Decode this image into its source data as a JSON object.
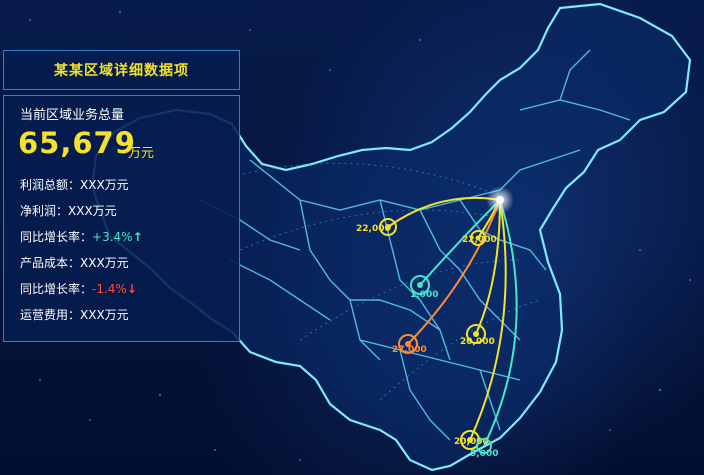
{
  "panel": {
    "title": "某某区域详细数据项",
    "total_label": "当前区域业务总量",
    "total_value": "65,679",
    "total_unit": "万元",
    "rows": [
      {
        "label": "利润总额：",
        "value": "XXX万元"
      },
      {
        "label": "净利润：",
        "value": "XXX万元"
      },
      {
        "label": "同比增长率：",
        "value": "+3.4%",
        "trend": "up"
      },
      {
        "label": "产品成本：",
        "value": "XXX万元"
      },
      {
        "label": "同比增长率：",
        "value": "-1.4%",
        "trend": "down"
      },
      {
        "label": "运营费用：",
        "value": "XXX万元"
      }
    ]
  },
  "map": {
    "nodes": [
      {
        "label": "22,000",
        "color": "#f3e12d"
      },
      {
        "label": "22,000",
        "color": "#f3e12d"
      },
      {
        "label": "1,000",
        "color": "#45e8c8"
      },
      {
        "label": "27,000",
        "color": "#ff8a3c"
      },
      {
        "label": "20,000",
        "color": "#f3e12d"
      },
      {
        "label": "20,000",
        "color": "#f3e12d"
      },
      {
        "label": "5,000",
        "color": "#45e8c8"
      }
    ]
  },
  "colors": {
    "accent_yellow": "#f3e12d",
    "accent_cyan": "#45e8c8",
    "accent_red": "#ff4d3d",
    "border_blue": "#2f7fd6",
    "map_outline": "#7fe9ff"
  },
  "icons": {
    "up": "arrow-up-icon",
    "down": "arrow-down-icon"
  }
}
